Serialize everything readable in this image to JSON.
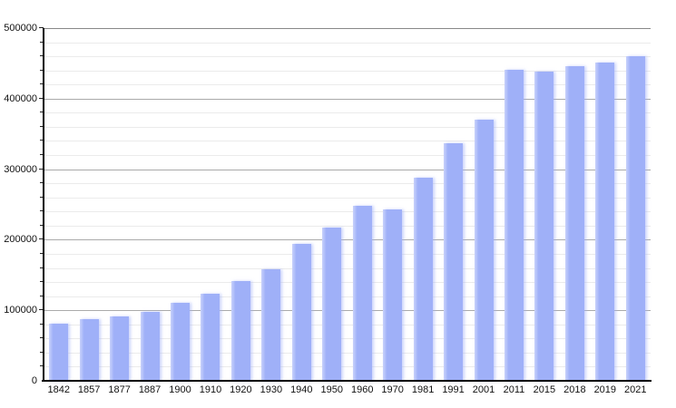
{
  "chart_data": {
    "type": "bar",
    "title": "",
    "xlabel": "",
    "ylabel": "",
    "categories": [
      "1842",
      "1857",
      "1877",
      "1887",
      "1900",
      "1910",
      "1920",
      "1930",
      "1940",
      "1950",
      "1960",
      "1970",
      "1981",
      "1991",
      "2001",
      "2011",
      "2015",
      "2018",
      "2019",
      "2021"
    ],
    "values": [
      82000,
      89000,
      92000,
      99000,
      112000,
      125000,
      143000,
      159000,
      195000,
      219000,
      249000,
      244000,
      289000,
      338000,
      371000,
      442000,
      440000,
      447000,
      453000,
      461000
    ],
    "ylim": [
      0,
      500000
    ],
    "y_major_step": 100000,
    "y_minor_step": 20000,
    "y_tick_labels": [
      "0",
      "100000",
      "200000",
      "300000",
      "400000",
      "500000"
    ],
    "grid": "horizontal major+minor",
    "legend": "none",
    "colors": {
      "bar": "#9fb0f8",
      "bar_highlight": "#c9d2fb",
      "major_grid": "#aaaaaa",
      "minor_grid": "#ebebeb",
      "top_border": "#888888",
      "axis": "#000000",
      "text": "#111111",
      "background": "#ffffff"
    }
  }
}
